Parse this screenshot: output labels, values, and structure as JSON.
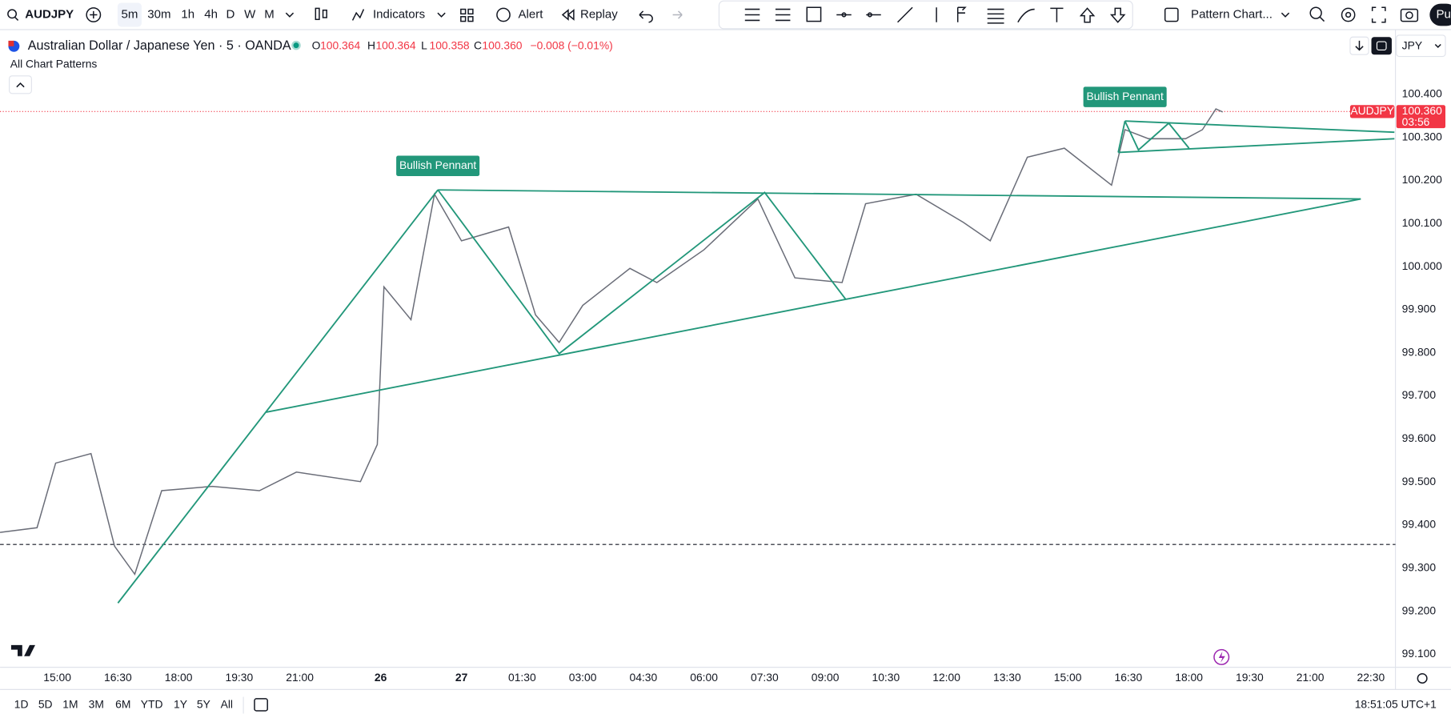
{
  "toolbar": {
    "symbol": "AUDJPY",
    "intervals": [
      "5m",
      "30m",
      "1h",
      "4h",
      "D",
      "W",
      "M"
    ],
    "indicators": "Indicators",
    "alert": "Alert",
    "replay": "Replay",
    "layout": "Pattern Chart...",
    "publish": "Pu"
  },
  "header": {
    "title": "Australian Dollar / Japanese Yen · 5 · OANDA",
    "ohlc": [
      {
        "label": "O",
        "value": "100.364"
      },
      {
        "label": "H",
        "value": "100.364"
      },
      {
        "label": "L",
        "value": "100.358"
      },
      {
        "label": "C",
        "value": "100.360"
      }
    ],
    "change": "−0.008 (−0.01%)",
    "indicator": "All Chart Patterns",
    "currency": "JPY"
  },
  "bottom_bar": {
    "ranges": [
      "1D",
      "5D",
      "1M",
      "3M",
      "6M",
      "YTD",
      "1Y",
      "5Y",
      "All"
    ],
    "clock": "18:51:05 UTC+1"
  },
  "chart_data": {
    "type": "line",
    "series": [
      {
        "name": "AUDJPY",
        "color": "#6a6d78",
        "x": [
          -17,
          -6,
          -0.5,
          10,
          17,
          23,
          31,
          46,
          60,
          71,
          90,
          95,
          97,
          105,
          112,
          120,
          134,
          142,
          149,
          156,
          170,
          178,
          192,
          208,
          219,
          233,
          240,
          255,
          269,
          277,
          288,
          299,
          313,
          317,
          324,
          335,
          340,
          344,
          346
        ],
        "values": [
          99.383,
          99.394,
          99.544,
          99.566,
          99.351,
          99.286,
          99.48,
          99.49,
          99.48,
          99.523,
          99.501,
          99.587,
          99.953,
          99.877,
          100.168,
          100.06,
          100.092,
          99.888,
          99.824,
          99.91,
          99.996,
          99.963,
          100.039,
          100.157,
          99.974,
          99.963,
          100.146,
          100.168,
          100.103,
          100.06,
          100.254,
          100.275,
          100.189,
          100.318,
          100.297,
          100.297,
          100.318,
          100.366,
          100.359
        ]
      }
    ],
    "patterns": [
      {
        "name": "Bullish Pennant",
        "color": "#22977a",
        "lines": [
          {
            "x": [
              18,
              113
            ],
            "y": [
              99.219,
              100.178
            ]
          },
          {
            "x": [
              113,
              387
            ],
            "y": [
              100.178,
              100.157
            ]
          },
          {
            "x": [
              62,
              387
            ],
            "y": [
              99.662,
              100.157
            ]
          },
          {
            "x": [
              113,
              149,
              210,
              234
            ],
            "y": [
              100.178,
              99.798,
              100.172,
              99.925
            ]
          }
        ]
      },
      {
        "name": "Bullish Pennant",
        "color": "#22977a",
        "lines": [
          {
            "x": [
              315,
              317
            ],
            "y": [
              100.265,
              100.338
            ]
          },
          {
            "x": [
              317,
              397
            ],
            "y": [
              100.338,
              100.312
            ]
          },
          {
            "x": [
              315,
              397
            ],
            "y": [
              100.265,
              100.297
            ]
          },
          {
            "x": [
              317,
              321,
              330,
              336
            ],
            "y": [
              100.338,
              100.271,
              100.333,
              100.275
            ]
          }
        ]
      }
    ],
    "price_line": {
      "symbol": "AUDJPY",
      "value": 100.36,
      "label": "100.360",
      "countdown": "03:56",
      "color": "#f23645"
    },
    "reference_line": {
      "value": 99.355,
      "style": "dashed"
    },
    "xlim": [
      -17,
      397.3
    ],
    "ylim": [
      99.07,
      100.533
    ],
    "grid": false,
    "xticks": [
      {
        "value": 0,
        "label": "15:00"
      },
      {
        "value": 18,
        "label": "16:30"
      },
      {
        "value": 36,
        "label": "18:00"
      },
      {
        "value": 54,
        "label": "19:30"
      },
      {
        "value": 72,
        "label": "21:00"
      },
      26,
      27,
      {
        "value": 138,
        "label": "01:30"
      },
      {
        "value": 156,
        "label": "03:00"
      },
      {
        "value": 174,
        "label": "04:30"
      },
      {
        "value": 192,
        "label": "06:00"
      },
      {
        "value": 210,
        "label": "07:30"
      },
      {
        "value": 228,
        "label": "09:00"
      },
      {
        "value": 246,
        "label": "10:30"
      },
      {
        "value": 264,
        "label": "12:00"
      },
      {
        "value": 282,
        "label": "13:30"
      },
      {
        "value": 300,
        "label": "15:00"
      },
      {
        "value": 318,
        "label": "16:30"
      },
      {
        "value": 336,
        "label": "18:00"
      },
      {
        "value": 354,
        "label": "19:30"
      },
      {
        "value": 372,
        "label": "21:00"
      },
      {
        "value": 390,
        "label": "22:30"
      }
    ],
    "xtick_positions": [
      96,
      120
    ],
    "yticks": [
      {
        "value": 100.4,
        "label": "100.400"
      },
      {
        "value": 100.3,
        "label": "100.300"
      },
      {
        "value": 100.2,
        "label": "100.200"
      },
      {
        "value": 100.1,
        "label": "100.100"
      },
      {
        "value": 100,
        "label": "100.000"
      },
      {
        "value": 99.9,
        "label": "99.900"
      },
      {
        "value": 99.8,
        "label": "99.800"
      },
      {
        "value": 99.7,
        "label": "99.700"
      },
      {
        "value": 99.6,
        "label": "99.600"
      },
      {
        "value": 99.5,
        "label": "99.500"
      },
      {
        "value": 99.4,
        "label": "99.400"
      },
      {
        "value": 99.3,
        "label": "99.300"
      },
      {
        "value": 99.2,
        "label": "99.200"
      },
      {
        "value": 99.1,
        "label": "99.100"
      }
    ]
  }
}
